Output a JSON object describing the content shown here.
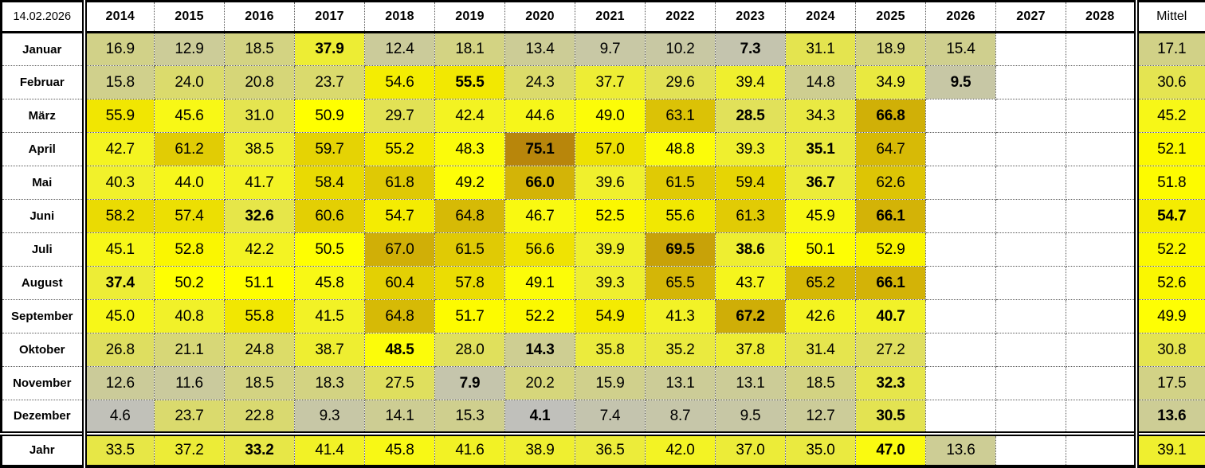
{
  "table": {
    "corner_label": "14.02.2026",
    "year_headers": [
      "2014",
      "2015",
      "2016",
      "2017",
      "2018",
      "2019",
      "2020",
      "2021",
      "2022",
      "2023",
      "2024",
      "2025",
      "2026",
      "2027",
      "2028"
    ],
    "mittel_header": "Mittel",
    "color_scale": {
      "min_value": 4.1,
      "min_color": "#C0C0BB",
      "mid_value": 51.0,
      "mid_color": "#FFFF00",
      "max_value": 75.1,
      "max_color": "#B8860B",
      "empty_color": "#FFFFFF"
    },
    "rows": [
      {
        "label": "Januar",
        "cells": [
          {
            "v": 16.9
          },
          {
            "v": 12.9
          },
          {
            "v": 18.5
          },
          {
            "v": 37.9,
            "b": true
          },
          {
            "v": 12.4
          },
          {
            "v": 18.1
          },
          {
            "v": 13.4
          },
          {
            "v": 9.7
          },
          {
            "v": 10.2
          },
          {
            "v": 7.3,
            "b": true
          },
          {
            "v": 31.1
          },
          {
            "v": 18.9
          },
          {
            "v": 15.4
          },
          null,
          null
        ],
        "mittel": {
          "v": 17.1
        }
      },
      {
        "label": "Februar",
        "cells": [
          {
            "v": 15.8
          },
          {
            "v": 24.0
          },
          {
            "v": 20.8
          },
          {
            "v": 23.7
          },
          {
            "v": 54.6
          },
          {
            "v": 55.5,
            "b": true
          },
          {
            "v": 24.3
          },
          {
            "v": 37.7
          },
          {
            "v": 29.6
          },
          {
            "v": 39.4
          },
          {
            "v": 14.8
          },
          {
            "v": 34.9
          },
          {
            "v": 9.5,
            "b": true
          },
          null,
          null
        ],
        "mittel": {
          "v": 30.6
        }
      },
      {
        "label": "März",
        "cells": [
          {
            "v": 55.9
          },
          {
            "v": 45.6
          },
          {
            "v": 31.0
          },
          {
            "v": 50.9
          },
          {
            "v": 29.7
          },
          {
            "v": 42.4
          },
          {
            "v": 44.6
          },
          {
            "v": 49.0
          },
          {
            "v": 63.1
          },
          {
            "v": 28.5,
            "b": true
          },
          {
            "v": 34.3
          },
          {
            "v": 66.8,
            "b": true
          },
          null,
          null,
          null
        ],
        "mittel": {
          "v": 45.2
        }
      },
      {
        "label": "April",
        "cells": [
          {
            "v": 42.7
          },
          {
            "v": 61.2
          },
          {
            "v": 38.5
          },
          {
            "v": 59.7
          },
          {
            "v": 55.2
          },
          {
            "v": 48.3
          },
          {
            "v": 75.1,
            "b": true
          },
          {
            "v": 57.0
          },
          {
            "v": 48.8
          },
          {
            "v": 39.3
          },
          {
            "v": 35.1,
            "b": true
          },
          {
            "v": 64.7
          },
          null,
          null,
          null
        ],
        "mittel": {
          "v": 52.1
        }
      },
      {
        "label": "Mai",
        "cells": [
          {
            "v": 40.3
          },
          {
            "v": 44.0
          },
          {
            "v": 41.7
          },
          {
            "v": 58.4
          },
          {
            "v": 61.8
          },
          {
            "v": 49.2
          },
          {
            "v": 66.0,
            "b": true
          },
          {
            "v": 39.6
          },
          {
            "v": 61.5
          },
          {
            "v": 59.4
          },
          {
            "v": 36.7,
            "b": true
          },
          {
            "v": 62.6
          },
          null,
          null,
          null
        ],
        "mittel": {
          "v": 51.8
        }
      },
      {
        "label": "Juni",
        "cells": [
          {
            "v": 58.2
          },
          {
            "v": 57.4
          },
          {
            "v": 32.6,
            "b": true
          },
          {
            "v": 60.6
          },
          {
            "v": 54.7
          },
          {
            "v": 64.8
          },
          {
            "v": 46.7
          },
          {
            "v": 52.5
          },
          {
            "v": 55.6
          },
          {
            "v": 61.3
          },
          {
            "v": 45.9
          },
          {
            "v": 66.1,
            "b": true
          },
          null,
          null,
          null
        ],
        "mittel": {
          "v": 54.7,
          "b": true
        }
      },
      {
        "label": "Juli",
        "cells": [
          {
            "v": 45.1
          },
          {
            "v": 52.8
          },
          {
            "v": 42.2
          },
          {
            "v": 50.5
          },
          {
            "v": 67.0
          },
          {
            "v": 61.5
          },
          {
            "v": 56.6
          },
          {
            "v": 39.9
          },
          {
            "v": 69.5,
            "b": true
          },
          {
            "v": 38.6,
            "b": true
          },
          {
            "v": 50.1
          },
          {
            "v": 52.9
          },
          null,
          null,
          null
        ],
        "mittel": {
          "v": 52.2
        }
      },
      {
        "label": "August",
        "cells": [
          {
            "v": 37.4,
            "b": true
          },
          {
            "v": 50.2
          },
          {
            "v": 51.1
          },
          {
            "v": 45.8
          },
          {
            "v": 60.4
          },
          {
            "v": 57.8
          },
          {
            "v": 49.1
          },
          {
            "v": 39.3
          },
          {
            "v": 65.5
          },
          {
            "v": 43.7
          },
          {
            "v": 65.2
          },
          {
            "v": 66.1,
            "b": true
          },
          null,
          null,
          null
        ],
        "mittel": {
          "v": 52.6
        }
      },
      {
        "label": "September",
        "cells": [
          {
            "v": 45.0
          },
          {
            "v": 40.8
          },
          {
            "v": 55.8
          },
          {
            "v": 41.5
          },
          {
            "v": 64.8
          },
          {
            "v": 51.7
          },
          {
            "v": 52.2
          },
          {
            "v": 54.9
          },
          {
            "v": 41.3
          },
          {
            "v": 67.2,
            "b": true
          },
          {
            "v": 42.6
          },
          {
            "v": 40.7,
            "b": true
          },
          null,
          null,
          null
        ],
        "mittel": {
          "v": 49.9
        }
      },
      {
        "label": "Oktober",
        "cells": [
          {
            "v": 26.8
          },
          {
            "v": 21.1
          },
          {
            "v": 24.8
          },
          {
            "v": 38.7
          },
          {
            "v": 48.5,
            "b": true
          },
          {
            "v": 28.0
          },
          {
            "v": 14.3,
            "b": true
          },
          {
            "v": 35.8
          },
          {
            "v": 35.2
          },
          {
            "v": 37.8
          },
          {
            "v": 31.4
          },
          {
            "v": 27.2
          },
          null,
          null,
          null
        ],
        "mittel": {
          "v": 30.8
        }
      },
      {
        "label": "November",
        "cells": [
          {
            "v": 12.6
          },
          {
            "v": 11.6
          },
          {
            "v": 18.5
          },
          {
            "v": 18.3
          },
          {
            "v": 27.5
          },
          {
            "v": 7.9,
            "b": true
          },
          {
            "v": 20.2
          },
          {
            "v": 15.9
          },
          {
            "v": 13.1
          },
          {
            "v": 13.1
          },
          {
            "v": 18.5
          },
          {
            "v": 32.3,
            "b": true
          },
          null,
          null,
          null
        ],
        "mittel": {
          "v": 17.5
        }
      },
      {
        "label": "Dezember",
        "cells": [
          {
            "v": 4.6
          },
          {
            "v": 23.7
          },
          {
            "v": 22.8
          },
          {
            "v": 9.3
          },
          {
            "v": 14.1
          },
          {
            "v": 15.3
          },
          {
            "v": 4.1,
            "b": true
          },
          {
            "v": 7.4
          },
          {
            "v": 8.7
          },
          {
            "v": 9.5
          },
          {
            "v": 12.7
          },
          {
            "v": 30.5,
            "b": true
          },
          null,
          null,
          null
        ],
        "mittel": {
          "v": 13.6,
          "b": true
        }
      },
      {
        "label": "Jahr",
        "summary": true,
        "cells": [
          {
            "v": 33.5
          },
          {
            "v": 37.2
          },
          {
            "v": 33.2,
            "b": true
          },
          {
            "v": 41.4
          },
          {
            "v": 45.8
          },
          {
            "v": 41.6
          },
          {
            "v": 38.9
          },
          {
            "v": 36.5
          },
          {
            "v": 42.0
          },
          {
            "v": 37.0
          },
          {
            "v": 35.0
          },
          {
            "v": 47.0,
            "b": true
          },
          {
            "v": 13.6
          },
          null,
          null
        ],
        "mittel": {
          "v": 39.1
        }
      }
    ]
  }
}
